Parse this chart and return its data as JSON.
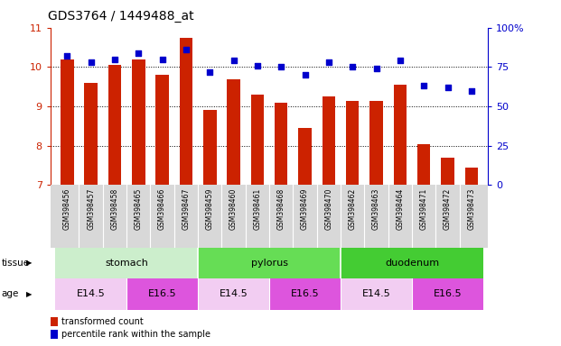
{
  "title": "GDS3764 / 1449488_at",
  "samples": [
    "GSM398456",
    "GSM398457",
    "GSM398458",
    "GSM398465",
    "GSM398466",
    "GSM398467",
    "GSM398459",
    "GSM398460",
    "GSM398461",
    "GSM398468",
    "GSM398469",
    "GSM398470",
    "GSM398462",
    "GSM398463",
    "GSM398464",
    "GSM398471",
    "GSM398472",
    "GSM398473"
  ],
  "bar_values": [
    10.2,
    9.6,
    10.05,
    10.2,
    9.8,
    10.75,
    8.9,
    9.7,
    9.3,
    9.1,
    8.45,
    9.25,
    9.15,
    9.15,
    9.55,
    8.05,
    7.7,
    7.45
  ],
  "dot_values": [
    82,
    78,
    80,
    84,
    80,
    86,
    72,
    79,
    76,
    75,
    70,
    78,
    75,
    74,
    79,
    63,
    62,
    60
  ],
  "bar_color": "#cc2200",
  "dot_color": "#0000cc",
  "ylim_left": [
    7,
    11
  ],
  "ylim_right": [
    0,
    100
  ],
  "yticks_left": [
    7,
    8,
    9,
    10,
    11
  ],
  "yticks_right": [
    0,
    25,
    50,
    75,
    100
  ],
  "ytick_labels_right": [
    "0",
    "25",
    "50",
    "75",
    "100%"
  ],
  "tissue_colors": {
    "stomach": "#cceecc",
    "pylorus": "#66dd55",
    "duodenum": "#44cc33"
  },
  "tissue_groups": [
    {
      "label": "stomach",
      "start": 0,
      "end": 6
    },
    {
      "label": "pylorus",
      "start": 6,
      "end": 12
    },
    {
      "label": "duodenum",
      "start": 12,
      "end": 18
    }
  ],
  "age_colors": {
    "E14.5": "#eebbeebb",
    "E16.5": "#dd55ddff"
  },
  "age_groups": [
    {
      "label": "E14.5",
      "start": 0,
      "end": 3
    },
    {
      "label": "E16.5",
      "start": 3,
      "end": 6
    },
    {
      "label": "E14.5",
      "start": 6,
      "end": 9
    },
    {
      "label": "E16.5",
      "start": 9,
      "end": 12
    },
    {
      "label": "E14.5",
      "start": 12,
      "end": 15
    },
    {
      "label": "E16.5",
      "start": 15,
      "end": 18
    }
  ],
  "legend_bar_label": "transformed count",
  "legend_dot_label": "percentile rank within the sample",
  "tissue_label": "tissue",
  "age_label": "age",
  "xtick_bg_color": "#d8d8d8",
  "title_fontsize": 10,
  "bar_width": 0.55
}
